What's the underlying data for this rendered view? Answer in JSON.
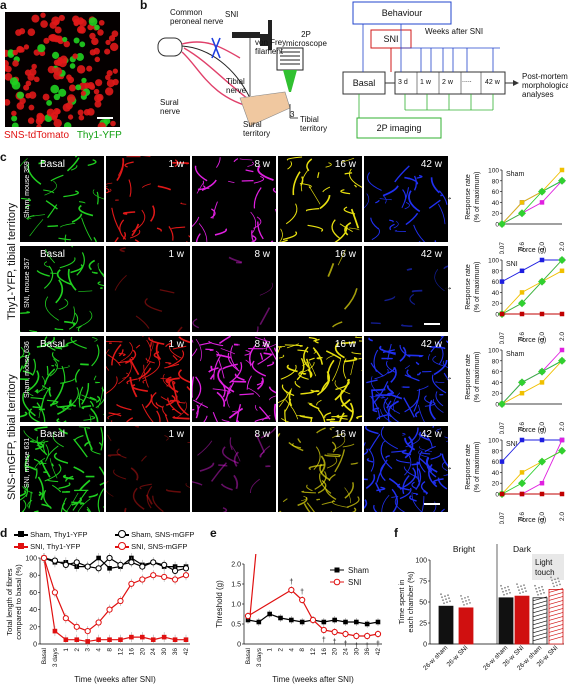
{
  "panel_letters": {
    "a": "a",
    "b": "b",
    "c": "c",
    "d": "d",
    "e": "e",
    "f": "f"
  },
  "panel_a": {
    "label_red": "SNS-tdTomato",
    "label_green": "Thy1-YFP"
  },
  "panel_b": {
    "common_peroneal": "Common peroneal nerve",
    "snil": "SNI",
    "von_frey": "von Frey filament",
    "tibial": "Tibial nerve",
    "sural_nerve": "Sural nerve",
    "microscope": "2P microscope",
    "sural_territory": "Sural territory",
    "tibial_territory": "Tibial territory",
    "territory_num": "3",
    "behaviour": "Behaviour",
    "sni_box": "SNI",
    "weeks_after": "Weeks after SNI",
    "basal": "Basal",
    "t_3d": "3 d",
    "t_1w": "1 w",
    "t_2w": "2 w",
    "t_dots": ".....",
    "t_42w": "42 w",
    "post_mortem": "Post-mortem morphological analyses",
    "imaging": "2P imaging"
  },
  "panel_c": {
    "side_top": "Thy1-YFP, tibial territory",
    "side_bottom": "SNS-mGFP, tibial territory",
    "rows": [
      {
        "label": "Sham, mouse 359",
        "cond": "Sham"
      },
      {
        "label": "SNI, mouse 357",
        "cond": "SNI"
      },
      {
        "label": "Sham, mouse 636",
        "cond": "Sham"
      },
      {
        "label": "SNI, mouse 631",
        "cond": "SNI"
      }
    ],
    "timepoints": [
      "Basal",
      "1 w",
      "8 w",
      "16 w",
      "42 w"
    ],
    "arrow": "↔",
    "ylabel_1": "Response rate",
    "ylabel_2": "(% of maximum)",
    "xlabel": "Force (g)",
    "xticks": [
      "0.07",
      "0.6",
      "1.0",
      "2.0"
    ],
    "yticks": [
      "0",
      "20",
      "40",
      "60",
      "80",
      "100"
    ]
  },
  "panel_d": {
    "legend": [
      "Sham, Thy1-YFP",
      "Sham, SNS-mGFP",
      "SNI, Thy1-YFP",
      "SNI, SNS-mGFP"
    ],
    "ylabel_1": "Total length of fibres",
    "ylabel_2": "compared to basal (%)",
    "xlabel": "Time (weeks after SNI)",
    "yticks": [
      "0",
      "20",
      "40",
      "60",
      "80",
      "100"
    ],
    "xticks": [
      "Basal",
      "3 days",
      "1",
      "2",
      "3",
      "4",
      "8",
      "12",
      "16",
      "20",
      "24",
      "30",
      "36",
      "42"
    ]
  },
  "panel_e": {
    "legend": [
      "Sham",
      "SNI"
    ],
    "ylabel": "Threshold (g)",
    "xlabel": "Time (weeks after SNI)",
    "yticks": [
      "0",
      "0.5",
      "1.0",
      "1.5",
      "2.0"
    ],
    "xticks": [
      "Basal",
      "3 days",
      "1",
      "2",
      "4",
      "8",
      "12",
      "16",
      "20",
      "24",
      "30",
      "36",
      "42"
    ],
    "marks": "†"
  },
  "panel_f": {
    "bright": "Bright",
    "dark": "Dark",
    "light_touch": "Light touch",
    "ylabel_1": "Time spent in",
    "ylabel_2": "each chamber (%)",
    "yticks": [
      "0",
      "25",
      "50",
      "75",
      "100"
    ],
    "xticks": [
      "26-w sham",
      "26-w SNI",
      "26-w sham",
      "26-w SNI",
      "26-w sham",
      "26-w SNI"
    ]
  },
  "chart_data": [
    {
      "type": "line",
      "xlabel": "Force (g)",
      "ylabel": "Response rate (% of maximum)",
      "categories": [
        "0.07",
        "0.6",
        "1.0",
        "2.0"
      ],
      "ylim": [
        0,
        100
      ],
      "series": [
        {
          "color": "#1e1ee0",
          "values": [
            0,
            40,
            60,
            80
          ]
        },
        {
          "color": "#e020e0",
          "values": [
            0,
            20,
            40,
            80
          ]
        },
        {
          "color": "#f0c000",
          "values": [
            0,
            40,
            60,
            100
          ]
        },
        {
          "color": "#30d030",
          "values": [
            0,
            20,
            60,
            80
          ]
        }
      ]
    },
    {
      "type": "line",
      "xlabel": "Force (g)",
      "ylabel": "Response rate (% of maximum)",
      "categories": [
        "0.07",
        "0.6",
        "1.0",
        "2.0"
      ],
      "ylim": [
        0,
        100
      ],
      "series": [
        {
          "color": "#1e1ee0",
          "values": [
            60,
            80,
            100,
            100
          ]
        },
        {
          "color": "#e020e0",
          "values": [
            0,
            20,
            60,
            100
          ]
        },
        {
          "color": "#f0c000",
          "values": [
            0,
            40,
            60,
            80
          ]
        },
        {
          "color": "#30d030",
          "values": [
            0,
            20,
            60,
            100
          ]
        },
        {
          "color": "#c00000",
          "values": [
            0,
            0,
            0,
            0
          ]
        }
      ]
    },
    {
      "type": "line",
      "xlabel": "Force (g)",
      "ylabel": "Response rate (% of maximum)",
      "categories": [
        "0.07",
        "0.6",
        "1.0",
        "2.0"
      ],
      "ylim": [
        0,
        100
      ],
      "series": [
        {
          "color": "#1e1ee0",
          "values": [
            0,
            40,
            60,
            80
          ]
        },
        {
          "color": "#e020e0",
          "values": [
            0,
            40,
            60,
            100
          ]
        },
        {
          "color": "#f0c000",
          "values": [
            0,
            20,
            40,
            80
          ]
        },
        {
          "color": "#30d030",
          "values": [
            0,
            40,
            60,
            80
          ]
        }
      ]
    },
    {
      "type": "line",
      "xlabel": "Force (g)",
      "ylabel": "Response rate (% of maximum)",
      "categories": [
        "0.07",
        "0.6",
        "1.0",
        "2.0"
      ],
      "ylim": [
        0,
        100
      ],
      "series": [
        {
          "color": "#1e1ee0",
          "values": [
            60,
            100,
            100,
            100
          ]
        },
        {
          "color": "#e020e0",
          "values": [
            0,
            0,
            20,
            100
          ]
        },
        {
          "color": "#f0c000",
          "values": [
            0,
            40,
            60,
            80
          ]
        },
        {
          "color": "#30d030",
          "values": [
            0,
            20,
            60,
            80
          ]
        },
        {
          "color": "#c00000",
          "values": [
            0,
            0,
            0,
            0
          ]
        }
      ]
    },
    {
      "type": "line",
      "xlabel": "Time (weeks after SNI)",
      "ylabel": "Total length of fibres compared to basal (%)",
      "categories": [
        "Basal",
        "3 days",
        "1",
        "2",
        "3",
        "4",
        "8",
        "12",
        "16",
        "20",
        "24",
        "30",
        "36",
        "42"
      ],
      "ylim": [
        0,
        100
      ],
      "series": [
        {
          "name": "Sham, Thy1-YFP",
          "color": "#000000",
          "values": [
            100,
            95,
            95,
            90,
            90,
            100,
            88,
            90,
            100,
            92,
            95,
            90,
            90,
            90
          ]
        },
        {
          "name": "Sham, SNS-mGFP",
          "color": "#000000",
          "values": [
            100,
            97,
            92,
            95,
            90,
            88,
            100,
            92,
            95,
            90,
            95,
            92,
            85,
            88
          ]
        },
        {
          "name": "SNI, Thy1-YFP",
          "color": "#e01010",
          "values": [
            100,
            15,
            5,
            5,
            3,
            5,
            5,
            5,
            8,
            8,
            5,
            8,
            5,
            5
          ]
        },
        {
          "name": "SNI, SNS-mGFP",
          "color": "#e01010",
          "values": [
            100,
            60,
            30,
            20,
            15,
            25,
            40,
            50,
            70,
            75,
            80,
            78,
            75,
            80
          ]
        }
      ]
    },
    {
      "type": "line",
      "xlabel": "Time (weeks after SNI)",
      "ylabel": "Threshold (g)",
      "categories": [
        "Basal",
        "3 days",
        "1",
        "2",
        "4",
        "8",
        "12",
        "16",
        "20",
        "24",
        "30",
        "36",
        "42"
      ],
      "ylim": [
        0,
        2.0
      ],
      "series": [
        {
          "name": "Sham",
          "color": "#000000",
          "values": [
            0.6,
            0.55,
            0.75,
            0.65,
            0.6,
            0.55,
            0.6,
            0.55,
            0.6,
            0.55,
            0.55,
            0.5,
            0.55
          ]
        },
        {
          "name": "SNI",
          "color": "#e01010",
          "values": [
            0.7,
            null,
            null,
            null,
            1.35,
            1.1,
            0.6,
            0.35,
            0.3,
            0.25,
            0.2,
            0.2,
            0.25
          ]
        }
      ]
    },
    {
      "type": "bar",
      "ylabel": "Time spent in each chamber (%)",
      "ylim": [
        0,
        100
      ],
      "categories": [
        "26-w sham",
        "26-w SNI",
        "26-w sham",
        "26-w SNI",
        "26-w sham",
        "26-w SNI"
      ],
      "values": [
        45,
        43,
        55,
        57,
        55,
        65
      ],
      "colors": [
        "#111111",
        "#d01010",
        "#111111",
        "#d01010",
        "#111111",
        "#d01010"
      ]
    }
  ]
}
